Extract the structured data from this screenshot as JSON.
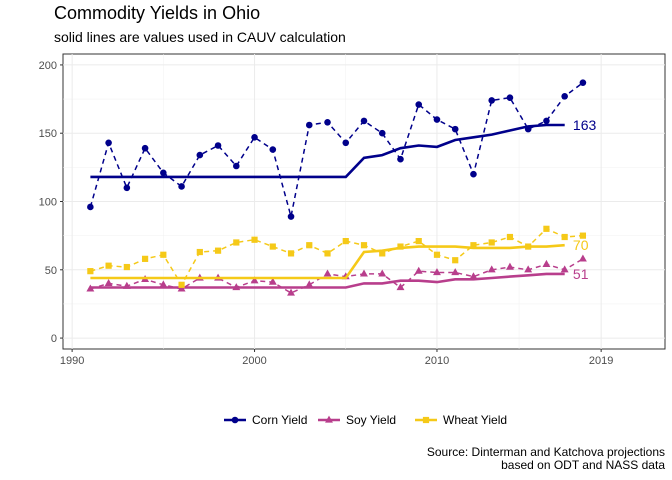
{
  "chart_data": {
    "type": "line",
    "title": "Commodity Yields in Ohio",
    "subtitle": "solid lines are values used in CAUV calculation",
    "caption": [
      "Source: Dinterman and Katchova projections",
      "based on ODT and NASS data"
    ],
    "xlabel": "",
    "ylabel": "",
    "xlim": [
      1989.5,
      2022.5
    ],
    "ylim": [
      -8,
      208
    ],
    "x_ticks": [
      1990,
      2000,
      2010,
      2019
    ],
    "y_ticks": [
      0,
      50,
      100,
      150,
      200
    ],
    "grid": true,
    "legend_position": "bottom",
    "series": [
      {
        "name": "Corn Yield",
        "color": "#00008b",
        "marker": "circle",
        "end_label": "163",
        "x": [
          1991,
          1992,
          1993,
          1994,
          1995,
          1996,
          1997,
          1998,
          1999,
          2000,
          2001,
          2002,
          2003,
          2004,
          2005,
          2006,
          2007,
          2008,
          2009,
          2010,
          2011,
          2012,
          2013,
          2014,
          2015,
          2016,
          2017,
          2018
        ],
        "values": [
          96,
          143,
          110,
          139,
          121,
          111,
          134,
          141,
          126,
          147,
          138,
          89,
          156,
          158,
          143,
          159,
          150,
          131,
          171,
          160,
          153,
          120,
          174,
          176,
          153,
          159,
          177,
          187
        ],
        "cauv_x": [
          1991,
          1992,
          1993,
          1994,
          1995,
          1996,
          1997,
          1998,
          1999,
          2000,
          2001,
          2002,
          2003,
          2004,
          2005,
          2006,
          2007,
          2008,
          2009,
          2010,
          2011,
          2012,
          2013,
          2014,
          2015,
          2016,
          2017
        ],
        "cauv_values": [
          118,
          118,
          118,
          118,
          118,
          118,
          118,
          118,
          118,
          118,
          118,
          118,
          118,
          118,
          118,
          132,
          134,
          139,
          141,
          140,
          145,
          147,
          149,
          152,
          155,
          156,
          156
        ]
      },
      {
        "name": "Soy Yield",
        "color": "#b83e8c",
        "marker": "triangle",
        "end_label": "51",
        "x": [
          1991,
          1992,
          1993,
          1994,
          1995,
          1996,
          1997,
          1998,
          1999,
          2000,
          2001,
          2002,
          2003,
          2004,
          2005,
          2006,
          2007,
          2008,
          2009,
          2010,
          2011,
          2012,
          2013,
          2014,
          2015,
          2016,
          2017,
          2018
        ],
        "values": [
          36,
          40,
          38,
          43,
          39,
          36,
          44,
          44,
          37,
          42,
          41,
          33,
          39,
          47,
          45,
          47,
          47,
          37,
          49,
          48,
          48,
          45,
          50,
          52,
          50,
          54,
          50,
          58
        ],
        "cauv_x": [
          1991,
          1992,
          1993,
          1994,
          1995,
          1996,
          1997,
          1998,
          1999,
          2000,
          2001,
          2002,
          2003,
          2004,
          2005,
          2006,
          2007,
          2008,
          2009,
          2010,
          2011,
          2012,
          2013,
          2014,
          2015,
          2016,
          2017
        ],
        "cauv_values": [
          37,
          37,
          37,
          37,
          37,
          37,
          37,
          37,
          37,
          37,
          37,
          37,
          37,
          37,
          37,
          40,
          40,
          42,
          42,
          41,
          43,
          43,
          44,
          45,
          46,
          47,
          47
        ]
      },
      {
        "name": "Wheat Yield",
        "color": "#f5c918",
        "marker": "square",
        "end_label": "70",
        "x": [
          1991,
          1992,
          1993,
          1994,
          1995,
          1996,
          1997,
          1998,
          1999,
          2000,
          2001,
          2002,
          2003,
          2004,
          2005,
          2006,
          2007,
          2008,
          2009,
          2010,
          2011,
          2012,
          2013,
          2014,
          2015,
          2016,
          2017,
          2018
        ],
        "values": [
          49,
          53,
          52,
          58,
          61,
          39,
          63,
          64,
          70,
          72,
          67,
          62,
          68,
          62,
          71,
          68,
          62,
          67,
          71,
          61,
          57,
          68,
          70,
          74,
          67,
          80,
          74,
          75
        ],
        "cauv_x": [
          1991,
          1992,
          1993,
          1994,
          1995,
          1996,
          1997,
          1998,
          1999,
          2000,
          2001,
          2002,
          2003,
          2004,
          2005,
          2006,
          2007,
          2008,
          2009,
          2010,
          2011,
          2012,
          2013,
          2014,
          2015,
          2016,
          2017
        ],
        "cauv_values": [
          44,
          44,
          44,
          44,
          44,
          44,
          44,
          44,
          44,
          44,
          44,
          44,
          44,
          44,
          44,
          63,
          64,
          66,
          67,
          67,
          67,
          66,
          66,
          66,
          67,
          67,
          68
        ]
      }
    ]
  }
}
